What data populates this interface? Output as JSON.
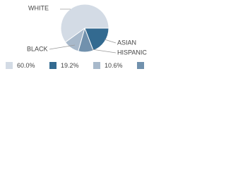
{
  "chart_data": {
    "type": "pie",
    "categories": [
      "WHITE",
      "ASIAN",
      "BLACK",
      "HISPANIC"
    ],
    "values": [
      60.0,
      19.2,
      10.6,
      10.2
    ],
    "value_labels": [
      "60.0%",
      "19.2%",
      "10.6%",
      null
    ],
    "colors": [
      "#d3dbe5",
      "#336a90",
      "#a8b9cb",
      "#7191ad"
    ]
  }
}
